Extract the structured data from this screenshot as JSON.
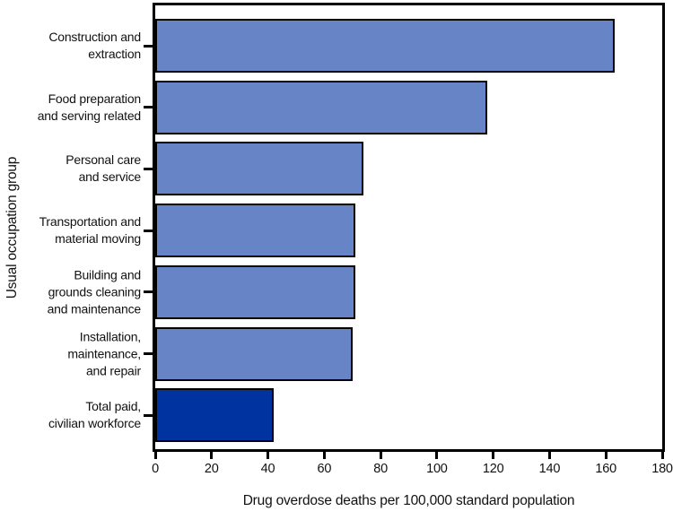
{
  "chart_data": {
    "type": "bar",
    "orientation": "horizontal",
    "title": "",
    "xlabel": "Drug overdose deaths per 100,000 standard population",
    "ylabel": "Usual occupation group",
    "xlim": [
      0,
      180
    ],
    "x_ticks": [
      0,
      20,
      40,
      60,
      80,
      100,
      120,
      140,
      160,
      180
    ],
    "grid": false,
    "legend": "none",
    "categories": [
      "Construction and extraction",
      "Food preparation and serving related",
      "Personal care and service",
      "Transportation and material moving",
      "Building and grounds cleaning and maintenance",
      "Installation, maintenance, and repair",
      "Total paid, civilian workforce"
    ],
    "label_lines": [
      [
        "Construction and",
        "extraction"
      ],
      [
        "Food preparation",
        "and serving related"
      ],
      [
        "Personal care",
        "and service"
      ],
      [
        "Transportation and",
        "material moving"
      ],
      [
        "Building and",
        "grounds cleaning",
        "and maintenance"
      ],
      [
        "Installation,",
        "maintenance,",
        "and repair"
      ],
      [
        "Total paid,",
        "civilian workforce"
      ]
    ],
    "values": [
      163,
      118,
      74,
      71,
      71,
      70,
      42
    ],
    "bar_colors": [
      "#6684C6",
      "#6684C6",
      "#6684C6",
      "#6684C6",
      "#6684C6",
      "#6684C6",
      "#0033A0"
    ],
    "colors": {
      "bar_fill": "#6684C6",
      "bar_total_fill": "#0033A0",
      "bar_border": "#000000",
      "axis": "#000000",
      "background": "#ffffff"
    }
  }
}
